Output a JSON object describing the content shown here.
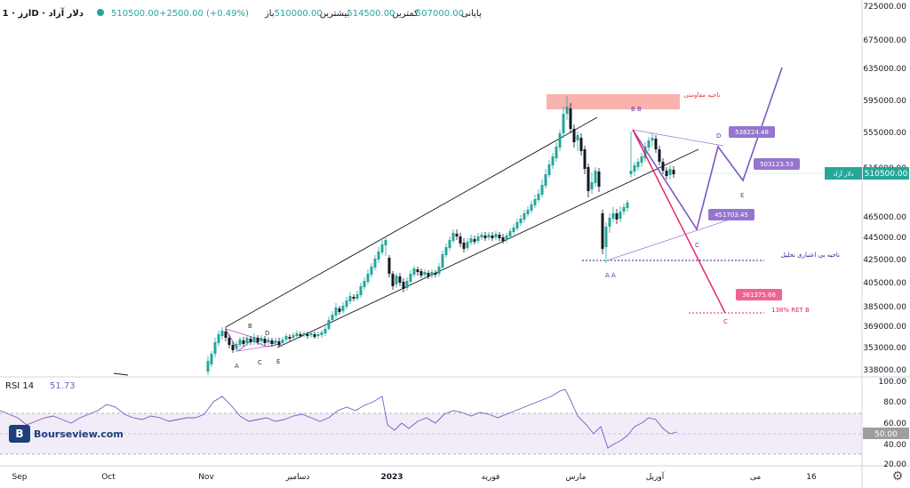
{
  "header": {
    "symbol": "دلار آزاد",
    "timeframe": "1D",
    "market": "ارز",
    "open_label": "باز",
    "open_value": "510000.00",
    "high_label": "بیشترین",
    "high_value": "514500.00",
    "low_label": "کمترین",
    "low_value": "507000.00",
    "close_label": "پایانی",
    "close_value": "510500.00",
    "change": "+2500.00 (+0.49%)"
  },
  "colors": {
    "up": "#26a69a",
    "down": "#131722",
    "channel": "#131722",
    "purple": "#7e57c2",
    "pink": "#e91e63",
    "resistance": "#f8a5a0",
    "current_price": "#26a69a"
  },
  "price_axis": {
    "ticks": [
      "725000.00",
      "675000.00",
      "635000.00",
      "595000.00",
      "555000.00",
      "515000.00",
      "465000.00",
      "445000.00",
      "425000.00",
      "405000.00",
      "385000.00",
      "369000.00",
      "353000.00",
      "338000.00"
    ],
    "current_value": "510500.00",
    "current_symbol": "دلار آزاد"
  },
  "rsi": {
    "label": "RSI 14",
    "value": "51.73",
    "ticks": [
      "100.00",
      "80.00",
      "60.00",
      "40.00",
      "20.00"
    ],
    "current_value": "50.00"
  },
  "time_axis": {
    "labels": [
      "Sep",
      "Oct",
      "Nov",
      "دسامبر",
      "2023",
      "فوریه",
      "مارس",
      "آوریل",
      "می",
      "16"
    ]
  },
  "annotations": {
    "resistance_zone": "ناحیه مقاومتی",
    "invalid_zone": "ناحیه بی اعتباری تحلیل",
    "label_538": "538224.48",
    "label_503": "503123.53",
    "label_451": "451703.45",
    "label_381": "381375.68",
    "ret_label": "138% RET B",
    "wave_A_left": "A",
    "wave_B_left": "B",
    "wave_C_left": "C",
    "wave_D_left": "D",
    "wave_E_left": "E",
    "wave_BB": "B B",
    "wave_AA": "A A",
    "wave_D_right": "D",
    "wave_E_right": "E",
    "wave_C_purple": "C",
    "wave_C_pink": "C"
  },
  "watermark": {
    "logo_text": "B",
    "site": "Bourseview.com"
  },
  "settings_icon": "gear-icon"
}
